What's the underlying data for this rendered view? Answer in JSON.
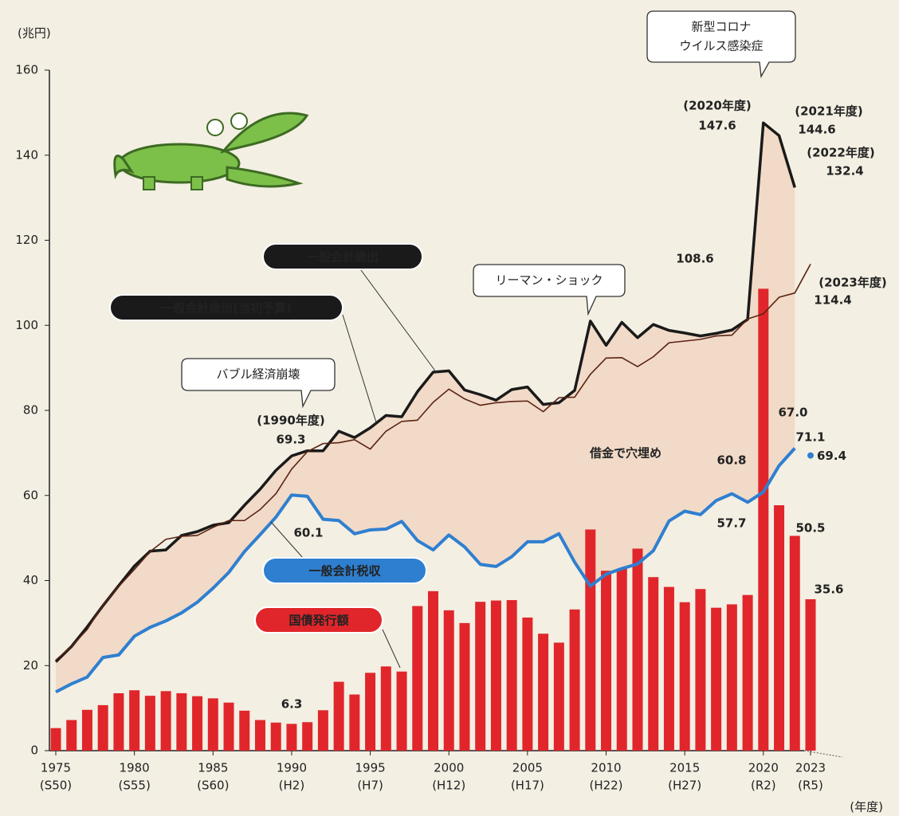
{
  "chart_data": {
    "type": "combo",
    "y_unit": "(兆円)",
    "x_unit": "(年度)",
    "ylim": [
      0,
      160
    ],
    "yticks": [
      0,
      20,
      40,
      60,
      80,
      100,
      120,
      140,
      160
    ],
    "xlim": [
      1975,
      2023
    ],
    "xticks": [
      1975,
      1980,
      1985,
      1990,
      1995,
      2000,
      2005,
      2010,
      2015,
      2020,
      2023
    ],
    "xtick_sublabels": [
      "(S50)",
      "(S55)",
      "(S60)",
      "(H2)",
      "(H7)",
      "(H12)",
      "(H17)",
      "(H22)",
      "(H27)",
      "(R2)",
      "(R5)"
    ],
    "grid": false,
    "x": [
      1975,
      1976,
      1977,
      1978,
      1979,
      1980,
      1981,
      1982,
      1983,
      1984,
      1985,
      1986,
      1987,
      1988,
      1989,
      1990,
      1991,
      1992,
      1993,
      1994,
      1995,
      1996,
      1997,
      1998,
      1999,
      2000,
      2001,
      2002,
      2003,
      2004,
      2005,
      2006,
      2007,
      2008,
      2009,
      2010,
      2011,
      2012,
      2013,
      2014,
      2015,
      2016,
      2017,
      2018,
      2019,
      2020,
      2021,
      2022,
      2023
    ],
    "series": [
      {
        "name": "一般会計歳出",
        "kind": "line",
        "color": "#1a1a1a",
        "values": [
          20.9,
          24.5,
          29.1,
          34.1,
          38.8,
          43.4,
          46.9,
          47.2,
          50.6,
          51.5,
          53.0,
          53.6,
          57.7,
          61.5,
          65.9,
          69.3,
          70.5,
          70.5,
          75.1,
          73.6,
          75.9,
          78.8,
          78.5,
          84.4,
          89.0,
          89.3,
          84.8,
          83.7,
          82.4,
          84.9,
          85.5,
          81.4,
          81.8,
          84.7,
          101.0,
          95.3,
          100.7,
          97.1,
          100.2,
          98.8,
          98.2,
          97.5,
          98.1,
          98.9,
          101.4,
          147.6,
          144.6,
          132.4,
          null
        ],
        "value_labels": [
          null,
          null,
          null,
          null,
          null,
          null,
          null,
          null,
          null,
          null,
          null,
          null,
          null,
          null,
          null,
          "69.3",
          null,
          null,
          null,
          null,
          null,
          null,
          null,
          null,
          null,
          null,
          null,
          null,
          null,
          null,
          null,
          null,
          null,
          null,
          null,
          null,
          null,
          null,
          null,
          null,
          null,
          null,
          null,
          null,
          null,
          "147.6",
          "144.6",
          "132.4",
          null
        ]
      },
      {
        "name": "一般会計歳出(当初予算)",
        "kind": "line",
        "color": "#5a2414",
        "values": [
          21.3,
          24.5,
          28.5,
          34.3,
          38.6,
          42.6,
          46.8,
          49.7,
          50.4,
          50.6,
          52.5,
          54.1,
          54.1,
          56.7,
          60.4,
          66.2,
          70.3,
          72.2,
          72.4,
          73.1,
          70.9,
          75.1,
          77.4,
          77.7,
          81.9,
          85.0,
          82.7,
          81.2,
          81.8,
          82.1,
          82.2,
          79.7,
          83.0,
          83.1,
          88.5,
          92.3,
          92.4,
          90.3,
          92.6,
          95.9,
          96.3,
          96.7,
          97.5,
          97.7,
          101.5,
          102.7,
          106.6,
          107.6,
          114.4
        ],
        "value_labels": [
          null,
          null,
          null,
          null,
          null,
          null,
          null,
          null,
          null,
          null,
          null,
          null,
          null,
          null,
          null,
          null,
          null,
          null,
          null,
          null,
          null,
          null,
          null,
          null,
          null,
          null,
          null,
          null,
          null,
          null,
          null,
          null,
          null,
          null,
          null,
          null,
          null,
          null,
          null,
          null,
          null,
          null,
          null,
          null,
          null,
          null,
          null,
          null,
          "114.4"
        ]
      },
      {
        "name": "一般会計税収",
        "kind": "line",
        "color": "#2f7fd0",
        "values": [
          13.8,
          15.7,
          17.3,
          21.9,
          22.5,
          26.9,
          29.0,
          30.5,
          32.4,
          34.9,
          38.2,
          41.9,
          46.8,
          50.8,
          54.9,
          60.1,
          59.8,
          54.4,
          54.1,
          51.0,
          51.9,
          52.1,
          53.9,
          49.4,
          47.2,
          50.7,
          47.9,
          43.8,
          43.3,
          45.6,
          49.1,
          49.1,
          51.0,
          44.3,
          38.7,
          41.5,
          42.8,
          43.9,
          47.0,
          54.0,
          56.3,
          55.5,
          58.8,
          60.4,
          58.4,
          60.8,
          67.0,
          71.1,
          null
        ],
        "value_labels": [
          null,
          null,
          null,
          null,
          null,
          null,
          null,
          null,
          null,
          null,
          null,
          null,
          null,
          null,
          null,
          "60.1",
          null,
          null,
          null,
          null,
          null,
          null,
          null,
          null,
          null,
          null,
          null,
          null,
          null,
          null,
          null,
          null,
          null,
          null,
          null,
          null,
          null,
          null,
          null,
          null,
          null,
          null,
          null,
          null,
          null,
          "60.8",
          "67.0",
          "71.1",
          null
        ],
        "forecast": {
          "x": 2023,
          "value": 69.4,
          "label": "69.4"
        }
      },
      {
        "name": "国債発行額",
        "kind": "bar",
        "color": "#e0262b",
        "values": [
          5.3,
          7.2,
          9.6,
          10.7,
          13.5,
          14.2,
          12.9,
          14.0,
          13.5,
          12.8,
          12.3,
          11.3,
          9.4,
          7.2,
          6.6,
          6.3,
          6.7,
          9.5,
          16.2,
          13.2,
          18.3,
          19.8,
          18.6,
          34.0,
          37.5,
          33.0,
          30.0,
          35.0,
          35.3,
          35.4,
          31.3,
          27.5,
          25.4,
          33.2,
          52.0,
          42.3,
          42.8,
          47.5,
          40.8,
          38.5,
          34.9,
          38.0,
          33.6,
          34.4,
          36.6,
          108.6,
          57.7,
          50.5,
          35.6
        ],
        "value_labels": [
          null,
          null,
          null,
          null,
          null,
          null,
          null,
          null,
          null,
          null,
          null,
          null,
          null,
          null,
          null,
          "6.3",
          null,
          null,
          null,
          null,
          null,
          null,
          null,
          null,
          null,
          null,
          null,
          null,
          null,
          null,
          null,
          null,
          null,
          null,
          null,
          null,
          null,
          null,
          null,
          null,
          null,
          null,
          null,
          null,
          null,
          "108.6",
          "57.7",
          "50.5",
          "35.6"
        ]
      }
    ],
    "year_notes": [
      "(1990年度)",
      "(2020年度)",
      "(2021年度)",
      "(2022年度)",
      "(2023年度)"
    ],
    "callouts": [
      [
        "新型コロナ",
        "ウイルス感染症"
      ],
      [
        "リーマン・ショック"
      ],
      [
        "バブル経済崩壊"
      ]
    ],
    "gap_label": "借金で穴埋め"
  }
}
